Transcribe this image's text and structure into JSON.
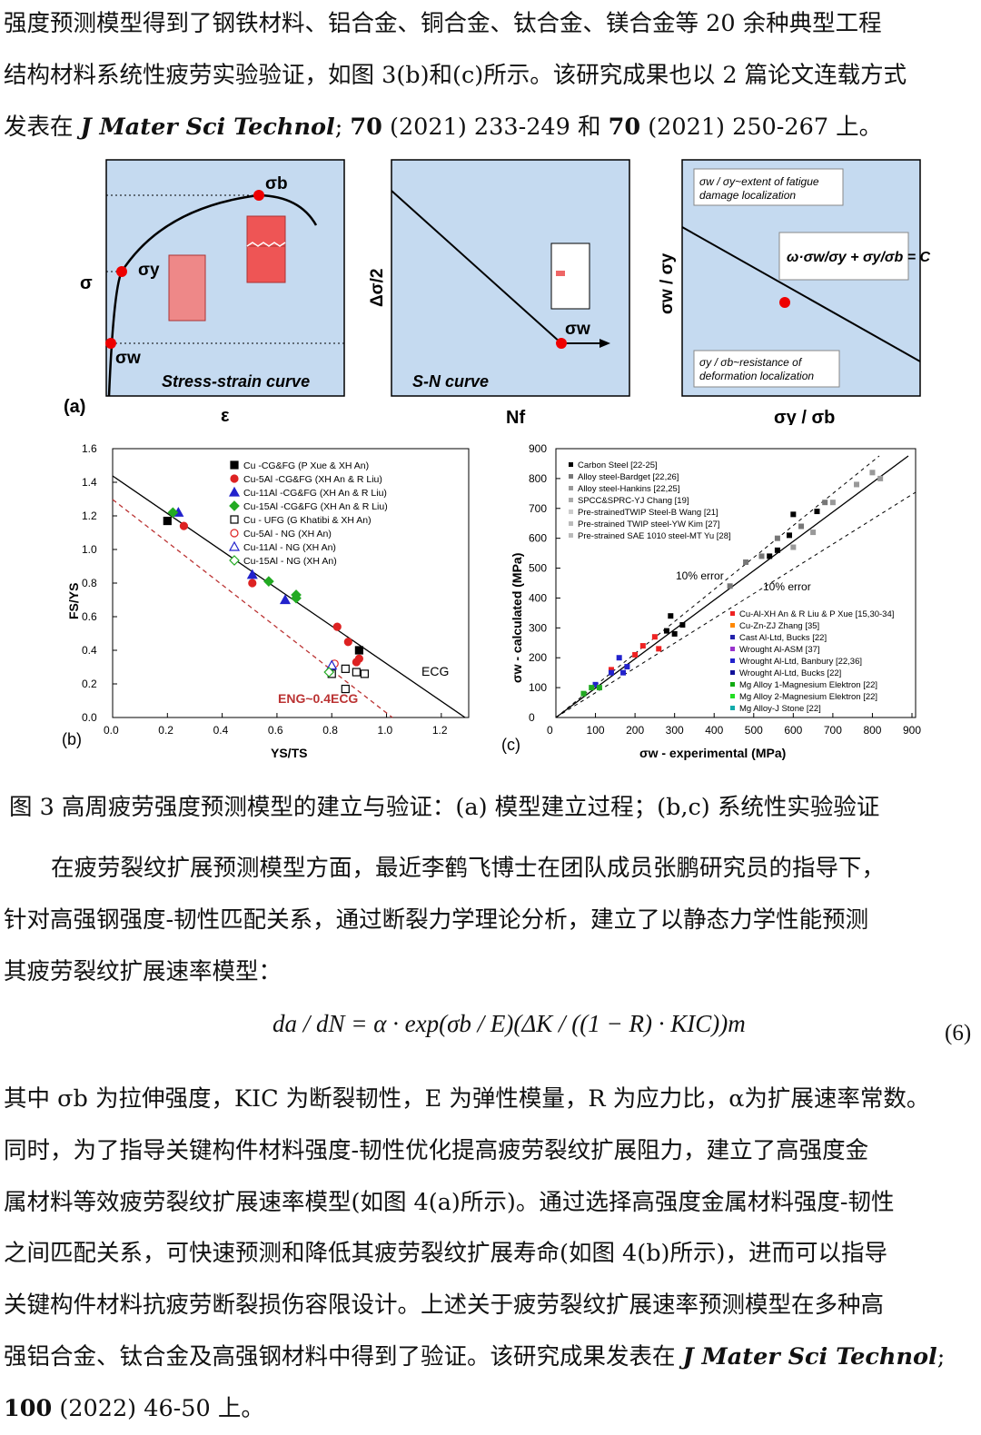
{
  "top_para": [
    "强度预测模型得到了钢铁材料、铝合金、铜合金、钛合金、镁合金等 20 余种典型工程",
    "结构材料系统性疲劳实验验证，如图 3(b)和(c)所示。该研究成果也以 2 篇论文连载方式",
    {
      "pre": "发表在 ",
      "journal": "J Mater Sci Technol",
      "mid1": "; ",
      "vol1": "70",
      "mid2": " (2021) 233-249 和 ",
      "vol2": "70",
      "post": " (2021) 250-267 上。"
    }
  ],
  "fig_a": {
    "panel_label": "(a)",
    "p1": {
      "title": "Stress-strain curve",
      "ylabel": "σ",
      "xlabel": "ε",
      "sigma_b": "σb",
      "sigma_y": "σy",
      "sigma_w": "σw"
    },
    "p2": {
      "title": "S-N curve",
      "ylabel": "Δσ/2",
      "xlabel": "Nf",
      "sigma_w": "σw"
    },
    "p3": {
      "ylabel": "σw / σy",
      "xlabel": "σy / σb",
      "note_top": [
        "σw / σy~extent of fatigue",
        "damage localization"
      ],
      "note_bottom": [
        "σy / σb~resistance of",
        "deformation localization"
      ],
      "equation": "ω·σw/σy + σy/σb = C"
    }
  },
  "fig_b": {
    "panel_label": "(b)",
    "xlabel": "YS/TS",
    "ylabel": "FS/YS",
    "xticks": [
      "0.0",
      "0.2",
      "0.4",
      "0.6",
      "0.8",
      "1.0",
      "1.2"
    ],
    "yticks": [
      "0.0",
      "0.2",
      "0.4",
      "0.6",
      "0.8",
      "1.0",
      "1.2",
      "1.4",
      "1.6"
    ],
    "legend": [
      "Cu -CG&FG (P Xue & XH An)",
      "Cu-5Al -CG&FG (XH An & R Liu)",
      "Cu-11Al -CG&FG (XH An & R Liu)",
      "Cu-15Al -CG&FG (XH An & R Liu)",
      "Cu - UFG (G Khatibi & XH An)",
      "Cu-5Al - NG (XH An)",
      "Cu-11Al - NG (XH An)",
      "Cu-15Al - NG (XH An)"
    ],
    "label_cg": "ECG",
    "label_ng": "ENG~0.4ECG"
  },
  "fig_c": {
    "panel_label": "(c)",
    "xlabel": "σw - experimental (MPa)",
    "ylabel": "σw - calculated (MPa)",
    "ticks": [
      "0",
      "100",
      "200",
      "300",
      "400",
      "500",
      "600",
      "700",
      "800",
      "900"
    ],
    "legend1": [
      "Carbon Steel [22-25]",
      "Alloy steel-Bardget [22,26]",
      "Alloy steel-Hankins [22,25]",
      "SPCC&SPRC-YJ Chang [19]",
      "Pre-strainedTWIP Steel-B Wang [21]",
      "Pre-strained TWIP steel-YW Kim [27]",
      "Pre-strained SAE 1010 steel-MT Yu [28]"
    ],
    "legend2": [
      "Cu-Al-XH An & R Liu & P Xue [15,30-34]",
      "Cu-Zn-ZJ Zhang [35]",
      "Cast Al-Ltd, Bucks [22]",
      "Wrought Al-ASM [37]",
      "Wrought Al-Ltd, Banbury [22,36]",
      "Wrought Al-Ltd, Bucks [22]",
      "Mg Alloy 1-Magnesium Elektron [22]",
      "Mg Alloy 2-Magnesium Elektron [22]",
      "Mg Alloy-J Stone [22]"
    ],
    "err1": "10% error",
    "err2": "10% error"
  },
  "caption": "图 3  高周疲劳强度预测模型的建立与验证：(a)  模型建立过程；(b,c)  系统性实验验证",
  "para2": [
    "在疲劳裂纹扩展预测模型方面，最近李鹤飞博士在团队成员张鹏研究员的指导下，",
    "针对高强钢强度-韧性匹配关系，通过断裂力学理论分析，建立了以静态力学性能预测",
    "其疲劳裂纹扩展速率模型："
  ],
  "equation": "da / dN = α · exp(σb / E)(ΔK / ((1 − R) · KIC))m",
  "eq_number": "(6)",
  "para3": [
    "其中 σb 为拉伸强度，KIC 为断裂韧性，E 为弹性模量，R 为应力比，α为扩展速率常数。",
    "同时，为了指导关键构件材料强度-韧性优化提高疲劳裂纹扩展阻力，建立了高强度金",
    "属材料等效疲劳裂纹扩展速率模型(如图 4(a)所示)。通过选择高强度金属材料强度-韧性",
    "之间匹配关系，可快速预测和降低其疲劳裂纹扩展寿命(如图 4(b)所示)，进而可以指导",
    "关键构件材料抗疲劳断裂损伤容限设计。上述关于疲劳裂纹扩展速率预测模型在多种高",
    {
      "pre": "强铝合金、钛合金及高强钢材料中得到了验证。该研究成果发表在 ",
      "journal": "J Mater Sci Technol",
      "post": ";"
    },
    {
      "vol": "100",
      "post": " (2022) 46-50 上。"
    }
  ],
  "chart_data": [
    {
      "type": "scatter",
      "title": "",
      "xlabel": "YS/TS",
      "ylabel": "FS/YS",
      "xlim": [
        0,
        1.3
      ],
      "ylim": [
        0,
        1.6
      ],
      "series": [
        {
          "name": "Cu -CG&FG (P Xue & XH An)",
          "points": [
            [
              0.2,
              1.17
            ],
            [
              0.9,
              0.4
            ]
          ]
        },
        {
          "name": "Cu-5Al -CG&FG (XH An & R Liu)",
          "points": [
            [
              0.26,
              1.14
            ],
            [
              0.51,
              0.8
            ],
            [
              0.82,
              0.54
            ],
            [
              0.86,
              0.45
            ],
            [
              0.89,
              0.33
            ],
            [
              0.9,
              0.35
            ]
          ]
        },
        {
          "name": "Cu-11Al -CG&FG (XH An & R Liu)",
          "points": [
            [
              0.24,
              1.22
            ],
            [
              0.51,
              0.85
            ],
            [
              0.63,
              0.7
            ]
          ]
        },
        {
          "name": "Cu-15Al -CG&FG (XH An & R Liu)",
          "points": [
            [
              0.22,
              1.22
            ],
            [
              0.57,
              0.81
            ],
            [
              0.67,
              0.71
            ],
            [
              0.67,
              0.73
            ]
          ]
        },
        {
          "name": "Cu - UFG (G Khatibi & XH An)",
          "points": [
            [
              0.8,
              0.26
            ],
            [
              0.85,
              0.29
            ],
            [
              0.85,
              0.17
            ],
            [
              0.89,
              0.27
            ],
            [
              0.92,
              0.26
            ]
          ]
        },
        {
          "name": "Cu-5Al - NG (XH An)",
          "points": [
            [
              0.81,
              0.32
            ]
          ]
        },
        {
          "name": "Cu-11Al - NG (XH An)",
          "points": [
            [
              0.8,
              0.31
            ]
          ]
        },
        {
          "name": "Cu-15Al - NG (XH An)",
          "points": [
            [
              0.79,
              0.27
            ]
          ]
        }
      ]
    },
    {
      "type": "scatter",
      "title": "",
      "xlabel": "σw - experimental (MPa)",
      "ylabel": "σw - calculated (MPa)",
      "xlim": [
        0,
        900
      ],
      "ylim": [
        0,
        900
      ],
      "series": [
        {
          "name": "Carbon Steel [22-25]",
          "points": [
            [
              280,
              290
            ],
            [
              300,
              280
            ],
            [
              320,
              310
            ],
            [
              290,
              340
            ],
            [
              540,
              540
            ],
            [
              560,
              560
            ],
            [
              590,
              610
            ],
            [
              600,
              680
            ],
            [
              660,
              690
            ]
          ]
        },
        {
          "name": "Alloy steel-Bardget [22,26]",
          "points": [
            [
              440,
              440
            ],
            [
              480,
              520
            ],
            [
              520,
              540
            ],
            [
              560,
              600
            ],
            [
              620,
              640
            ],
            [
              680,
              720
            ]
          ]
        },
        {
          "name": "Alloy steel-Hankins [22,25]",
          "points": [
            [
              600,
              570
            ],
            [
              650,
              620
            ],
            [
              700,
              720
            ],
            [
              760,
              780
            ],
            [
              800,
              820
            ],
            [
              820,
              800
            ]
          ]
        },
        {
          "name": "Cu-Al-XH An & R Liu & P Xue [15,30-34]",
          "points": [
            [
              140,
              160
            ],
            [
              200,
              210
            ],
            [
              220,
              240
            ],
            [
              250,
              270
            ],
            [
              260,
              230
            ]
          ]
        },
        {
          "name": "Wrought Al-Ltd, Banbury [22,36]",
          "points": [
            [
              100,
              110
            ],
            [
              140,
              150
            ],
            [
              160,
              200
            ],
            [
              170,
              150
            ],
            [
              180,
              170
            ]
          ]
        },
        {
          "name": "Mg Alloy 1-Magnesium Elektron [22]",
          "points": [
            [
              70,
              80
            ],
            [
              90,
              100
            ],
            [
              110,
              100
            ]
          ]
        }
      ]
    }
  ]
}
